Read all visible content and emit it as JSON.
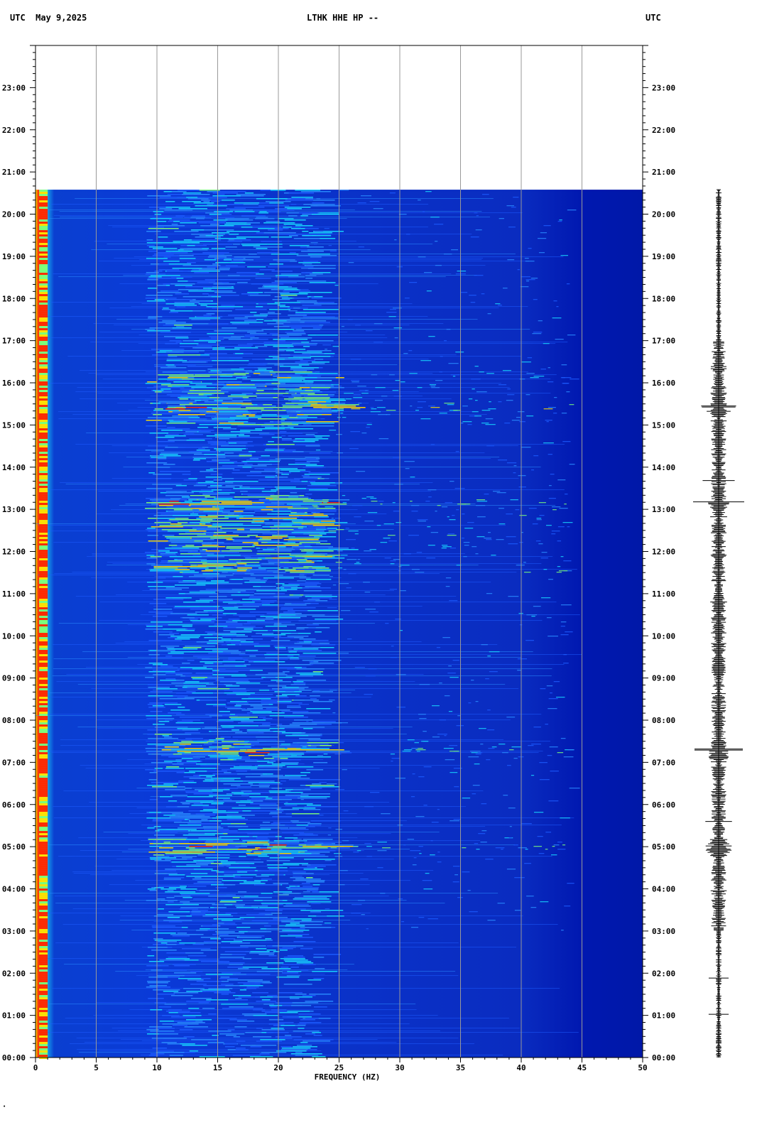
{
  "header": {
    "left": "UTC  May 9,2025",
    "title": "LTHK HHE HP --",
    "right": "UTC"
  },
  "colors": {
    "background_blue": "#0a2fa8",
    "deep_blue": "#0018b8",
    "noise_cyan": "#19d8ff",
    "noise_yellow": "#ffe000",
    "noise_red": "#ff2a00",
    "grid": "#999999",
    "seismogram": "#000000"
  },
  "chart_data": {
    "type": "heatmap",
    "title": "LTHK HHE HP --",
    "xlabel": "FREQUENCY (HZ)",
    "ylabel": "UTC",
    "xlim": [
      0,
      50
    ],
    "x_ticks": [
      0,
      5,
      10,
      15,
      20,
      25,
      30,
      35,
      40,
      45,
      50
    ],
    "ylim_hours": [
      0,
      24
    ],
    "data_end_hour": 20.58,
    "y_ticks": [
      "00:00",
      "01:00",
      "02:00",
      "03:00",
      "04:00",
      "05:00",
      "06:00",
      "07:00",
      "08:00",
      "09:00",
      "10:00",
      "11:00",
      "12:00",
      "13:00",
      "14:00",
      "15:00",
      "16:00",
      "17:00",
      "18:00",
      "19:00",
      "20:00",
      "21:00",
      "22:00",
      "23:00"
    ],
    "grid": true,
    "colormap": "jet",
    "notes_bands_hz": [
      [
        0.3,
        1.0
      ],
      [
        10,
        20
      ]
    ],
    "strong_events_hour": [
      5.0,
      7.3,
      13.15,
      15.4
    ]
  }
}
